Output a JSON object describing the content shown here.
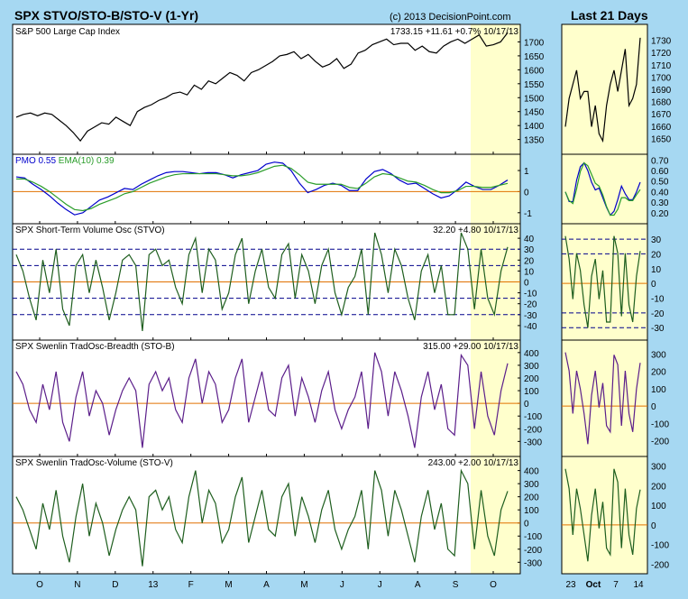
{
  "left_title": "SPX STVO/STO-B/STO-V (1-Yr)",
  "copyright": "(c) 2013 DecisionPoint.com",
  "right_title": "Last 21 Days",
  "colors": {
    "background": "#a6d8f2",
    "plot": "#ffffff",
    "plot_recent": "#ffffcc",
    "zero": "#e07000",
    "dashed": "#00008b",
    "price": "#000000",
    "pmo": "#0000cc",
    "ema": "#2a9d2a",
    "stvo": "#1e5e1e",
    "stob": "#5b1e8a",
    "stov": "#1e5e1e"
  },
  "chart_data": [
    {
      "type": "line",
      "name": "price",
      "title": "S&P 500 Large Cap Index",
      "readout": "1733.15  +11.61  +0.7%   10/17/13",
      "ylim": [
        1310,
        1750
      ],
      "yticks": [
        1350,
        1400,
        1450,
        1500,
        1550,
        1600,
        1650,
        1700
      ],
      "recent_ylim": [
        1640,
        1740
      ],
      "recent_yticks": [
        1650,
        1660,
        1670,
        1680,
        1690,
        1700,
        1710,
        1720,
        1730
      ],
      "series": [
        {
          "values": [
            1430,
            1440,
            1445,
            1435,
            1445,
            1440,
            1420,
            1400,
            1375,
            1345,
            1380,
            1395,
            1410,
            1405,
            1430,
            1415,
            1400,
            1450,
            1465,
            1475,
            1490,
            1500,
            1515,
            1520,
            1510,
            1545,
            1530,
            1560,
            1550,
            1570,
            1590,
            1580,
            1560,
            1590,
            1600,
            1615,
            1630,
            1650,
            1655,
            1665,
            1640,
            1655,
            1630,
            1610,
            1620,
            1640,
            1605,
            1620,
            1660,
            1670,
            1690,
            1700,
            1710,
            1690,
            1695,
            1695,
            1670,
            1685,
            1665,
            1660,
            1685,
            1700,
            1710,
            1695,
            1710,
            1725,
            1685,
            1690,
            1700,
            1733
          ]
        }
      ]
    },
    {
      "type": "line",
      "name": "pmo",
      "legend": [
        {
          "label": "PMO",
          "value": "0.55"
        },
        {
          "label": "EMA(10)",
          "value": "0.39"
        }
      ],
      "ylim": [
        -1.35,
        1.6
      ],
      "yticks": [
        -1,
        0,
        1
      ],
      "recent_ylim": [
        0.13,
        0.72
      ],
      "recent_yticks": [
        0.2,
        0.3,
        0.4,
        0.5,
        0.6,
        0.7
      ],
      "series": [
        {
          "name": "PMO",
          "values": [
            0.7,
            0.65,
            0.35,
            0.1,
            -0.2,
            -0.55,
            -0.85,
            -1.1,
            -1.0,
            -0.7,
            -0.4,
            -0.25,
            -0.05,
            0.15,
            0.1,
            0.35,
            0.55,
            0.75,
            0.9,
            0.95,
            0.95,
            0.9,
            0.85,
            0.9,
            0.9,
            0.8,
            0.65,
            0.8,
            0.9,
            1.0,
            1.3,
            1.4,
            1.35,
            1.0,
            0.4,
            -0.05,
            0.1,
            0.3,
            0.4,
            0.3,
            0.05,
            0.05,
            0.6,
            0.95,
            1.05,
            0.85,
            0.55,
            0.35,
            0.4,
            0.15,
            -0.1,
            -0.3,
            -0.2,
            0.1,
            0.45,
            0.25,
            0.1,
            0.1,
            0.3,
            0.55
          ]
        },
        {
          "name": "EMA(10)",
          "values": [
            0.6,
            0.6,
            0.45,
            0.25,
            0.0,
            -0.3,
            -0.6,
            -0.85,
            -0.9,
            -0.8,
            -0.6,
            -0.45,
            -0.3,
            -0.1,
            0.0,
            0.2,
            0.4,
            0.55,
            0.7,
            0.8,
            0.85,
            0.85,
            0.85,
            0.85,
            0.85,
            0.8,
            0.75,
            0.75,
            0.8,
            0.9,
            1.05,
            1.2,
            1.25,
            1.1,
            0.8,
            0.45,
            0.35,
            0.35,
            0.35,
            0.35,
            0.2,
            0.15,
            0.4,
            0.7,
            0.85,
            0.8,
            0.65,
            0.5,
            0.45,
            0.3,
            0.1,
            -0.05,
            -0.05,
            0.05,
            0.25,
            0.25,
            0.2,
            0.2,
            0.3,
            0.39
          ]
        }
      ]
    },
    {
      "type": "line",
      "name": "stvo",
      "title": "SPX Short-Term Volume Osc (STVO)",
      "readout": "32.20  +4.80  10/17/13",
      "ylim": [
        -50,
        50
      ],
      "yticks": [
        -40,
        -30,
        -20,
        -10,
        0,
        10,
        20,
        30,
        40
      ],
      "dashed": [
        30,
        15,
        -15,
        -30
      ],
      "recent_ylim": [
        -36,
        38
      ],
      "recent_yticks": [
        -30,
        -20,
        -10,
        0,
        10,
        20,
        30
      ],
      "recent_dashed": [
        30,
        20,
        -20,
        -30
      ],
      "series": [
        {
          "values": [
            25,
            10,
            -15,
            -35,
            20,
            -10,
            30,
            -25,
            -40,
            15,
            25,
            -10,
            20,
            -5,
            -35,
            -10,
            20,
            25,
            15,
            -45,
            25,
            30,
            15,
            20,
            -5,
            -20,
            25,
            40,
            -10,
            30,
            20,
            -25,
            -10,
            25,
            40,
            -20,
            10,
            30,
            -5,
            -15,
            25,
            35,
            -15,
            25,
            10,
            -20,
            15,
            30,
            -10,
            -30,
            -5,
            5,
            30,
            -30,
            45,
            25,
            -10,
            30,
            15,
            -15,
            -35,
            10,
            25,
            -10,
            15,
            -30,
            -30,
            45,
            30,
            -25,
            30,
            -15,
            -30,
            10,
            32
          ]
        }
      ]
    },
    {
      "type": "line",
      "name": "sto-b",
      "title": "SPX Swenlin TradOsc-Breadth (STO-B)",
      "readout": "315.00  +29.00  10/17/13",
      "ylim": [
        -390,
        470
      ],
      "yticks": [
        -300,
        -200,
        -100,
        0,
        100,
        200,
        300,
        400
      ],
      "recent_ylim": [
        -270,
        360
      ],
      "recent_yticks": [
        -200,
        -100,
        0,
        100,
        200,
        300
      ],
      "series": [
        {
          "values": [
            250,
            150,
            -50,
            -150,
            150,
            -50,
            250,
            -150,
            -300,
            50,
            250,
            -100,
            100,
            0,
            -250,
            -50,
            100,
            200,
            100,
            -350,
            150,
            250,
            100,
            200,
            -50,
            -150,
            200,
            350,
            0,
            250,
            150,
            -150,
            -50,
            200,
            350,
            -150,
            50,
            250,
            -50,
            -100,
            200,
            300,
            -100,
            200,
            50,
            -150,
            100,
            250,
            -50,
            -200,
            -50,
            50,
            250,
            -200,
            400,
            250,
            -100,
            250,
            100,
            -100,
            -350,
            50,
            250,
            -50,
            150,
            -200,
            -250,
            380,
            300,
            -200,
            250,
            -100,
            -250,
            100,
            315
          ]
        }
      ]
    },
    {
      "type": "line",
      "name": "sto-v",
      "title": "SPX Swenlin TradOsc-Volume (STO-V)",
      "readout": "243.00  +2.00  10/17/13",
      "ylim": [
        -360,
        480
      ],
      "yticks": [
        -300,
        -200,
        -100,
        0,
        100,
        200,
        300,
        400
      ],
      "recent_ylim": [
        -230,
        330
      ],
      "recent_yticks": [
        -200,
        -100,
        0,
        100,
        200,
        300
      ],
      "series": [
        {
          "values": [
            200,
            100,
            -50,
            -200,
            150,
            -50,
            250,
            -100,
            -300,
            50,
            300,
            -100,
            150,
            0,
            -250,
            -50,
            100,
            200,
            100,
            -330,
            200,
            250,
            100,
            200,
            -50,
            -150,
            200,
            400,
            0,
            250,
            150,
            -150,
            -50,
            200,
            350,
            -150,
            50,
            250,
            -50,
            -100,
            200,
            300,
            -100,
            200,
            50,
            -150,
            100,
            250,
            -50,
            -200,
            -50,
            50,
            250,
            -200,
            400,
            250,
            -100,
            250,
            100,
            -100,
            -300,
            50,
            250,
            -50,
            150,
            -200,
            -250,
            400,
            300,
            -200,
            250,
            -100,
            -250,
            100,
            243
          ]
        }
      ]
    }
  ],
  "x_axis_labels": [
    "O",
    "N",
    "D",
    "13",
    "F",
    "M",
    "A",
    "M",
    "J",
    "J",
    "A",
    "S",
    "O"
  ],
  "recent_x_labels": [
    "23",
    "Oct",
    "7",
    "14"
  ]
}
